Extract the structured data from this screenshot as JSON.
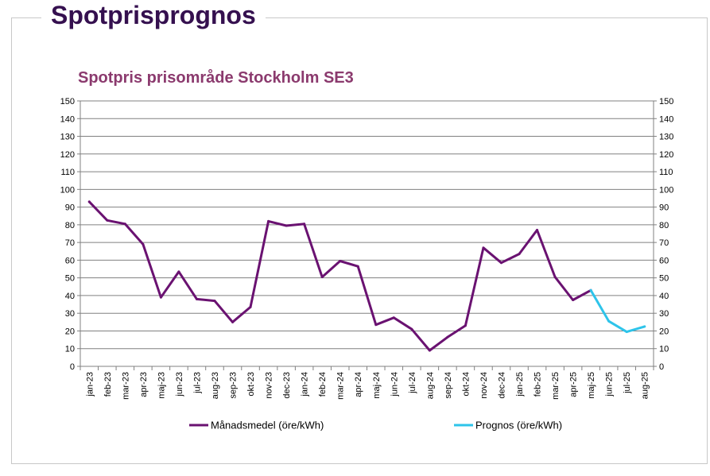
{
  "header": {
    "title": "Spotprisprognos"
  },
  "colors": {
    "header_title": "#35104f",
    "chart_title": "#8b3a6e",
    "monthly": "#6a1271",
    "forecast": "#2ec4ea",
    "grid": "#808080"
  },
  "chart_data": {
    "type": "line",
    "title": "Spotpris prisområde Stockholm SE3",
    "xlabel": "",
    "ylabel": "",
    "ylim": [
      0,
      150
    ],
    "y_ticks": [
      0,
      10,
      20,
      30,
      40,
      50,
      60,
      70,
      80,
      90,
      100,
      110,
      120,
      130,
      140,
      150
    ],
    "grid": true,
    "dual_y_axis": true,
    "legend_position": "bottom",
    "categories": [
      "jan-23",
      "feb-23",
      "mar-23",
      "apr-23",
      "maj-23",
      "jun-23",
      "jul-23",
      "aug-23",
      "sep-23",
      "okt-23",
      "nov-23",
      "dec-23",
      "jan-24",
      "feb-24",
      "mar-24",
      "apr-24",
      "maj-24",
      "jun-24",
      "jul-24",
      "aug-24",
      "sep-24",
      "okt-24",
      "nov-24",
      "dec-24",
      "jan-25",
      "feb-25",
      "mar-25",
      "apr-25",
      "maj-25",
      "jun-25",
      "jul-25",
      "aug-25"
    ],
    "series": [
      {
        "name": "Månadsmedel (öre/kWh)",
        "color": "#6a1271",
        "values": [
          93,
          82.5,
          80.5,
          69,
          39,
          53.5,
          38,
          37,
          25,
          33.5,
          82,
          79.5,
          80.5,
          50.5,
          59.5,
          56.5,
          23.5,
          27.5,
          21,
          9,
          16.5,
          23,
          67,
          58.5,
          63.5,
          77,
          50.5,
          37.5,
          43,
          null,
          null,
          null
        ]
      },
      {
        "name": "Prognos (öre/kWh)",
        "color": "#2ec4ea",
        "values": [
          null,
          null,
          null,
          null,
          null,
          null,
          null,
          null,
          null,
          null,
          null,
          null,
          null,
          null,
          null,
          null,
          null,
          null,
          null,
          null,
          null,
          null,
          null,
          null,
          null,
          null,
          null,
          null,
          43,
          25.5,
          19.5,
          22.5
        ]
      }
    ]
  }
}
